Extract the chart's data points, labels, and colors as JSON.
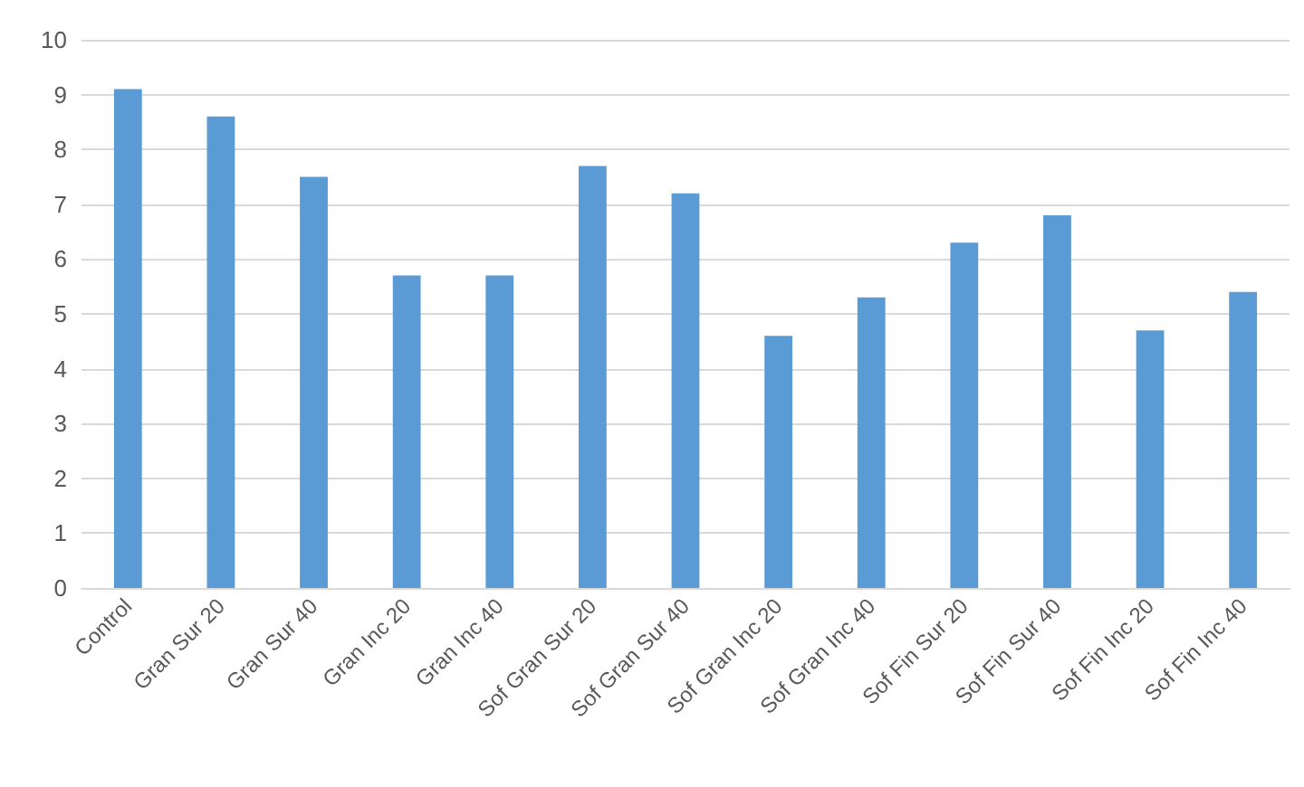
{
  "chart_data": {
    "type": "bar",
    "categories": [
      "Control",
      "Gran Sur 20",
      "Gran Sur 40",
      "Gran Inc 20",
      "Gran Inc 40",
      "Sof Gran Sur 20",
      "Sof Gran Sur 40",
      "Sof Gran Inc 20",
      "Sof Gran Inc 40",
      "Sof Fin Sur 20",
      "Sof Fin Sur 40",
      "Sof Fin Inc 20",
      "Sof Fin Inc 40"
    ],
    "values": [
      9.1,
      8.6,
      7.5,
      5.7,
      5.7,
      7.7,
      7.2,
      4.6,
      5.3,
      6.3,
      6.8,
      4.7,
      5.4
    ],
    "color": "#5b9bd5",
    "ylim": [
      0,
      10
    ],
    "yticks": [
      0,
      1,
      2,
      3,
      4,
      5,
      6,
      7,
      8,
      9,
      10
    ],
    "grid": "y"
  }
}
